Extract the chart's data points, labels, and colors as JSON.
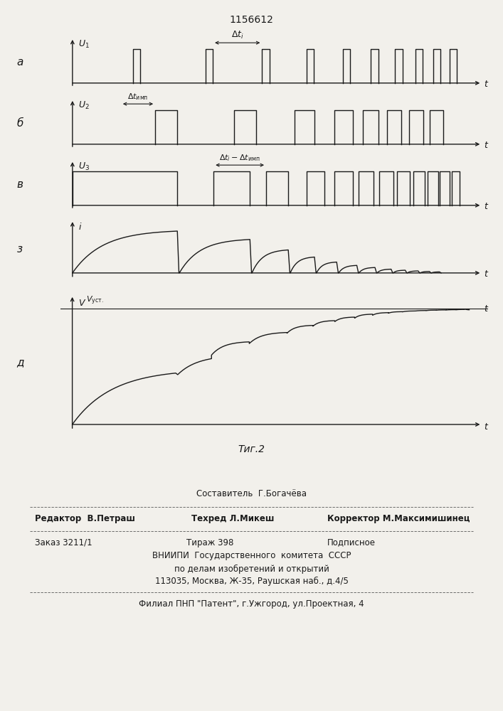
{
  "title": "1156612",
  "fig_caption": "Τиг.2",
  "bg_color": "#f2f0eb",
  "line_color": "#000000",
  "panel_labels": [
    "а",
    "б",
    "в",
    "з",
    "д"
  ],
  "y_labels_top": [
    "U₁",
    "U₂",
    "U₃",
    "i",
    "V"
  ],
  "footer_text": [
    "Составитель  Г.Богачёва",
    "Редактор  В.Петраш    Техред Л.Микеш         Корректор М.Максимишинец",
    "Заказ 3211/1       Тираж 398             Подписное",
    "ВНИИПИ  Государственного комитета СССР",
    "по делам изобретений и открытий",
    "113035, Москва, Ж-35, Раушская наб., д.4/5",
    "Филиал ППП \"Патент\", г.Ужгород, ул.Проектная, 4"
  ]
}
